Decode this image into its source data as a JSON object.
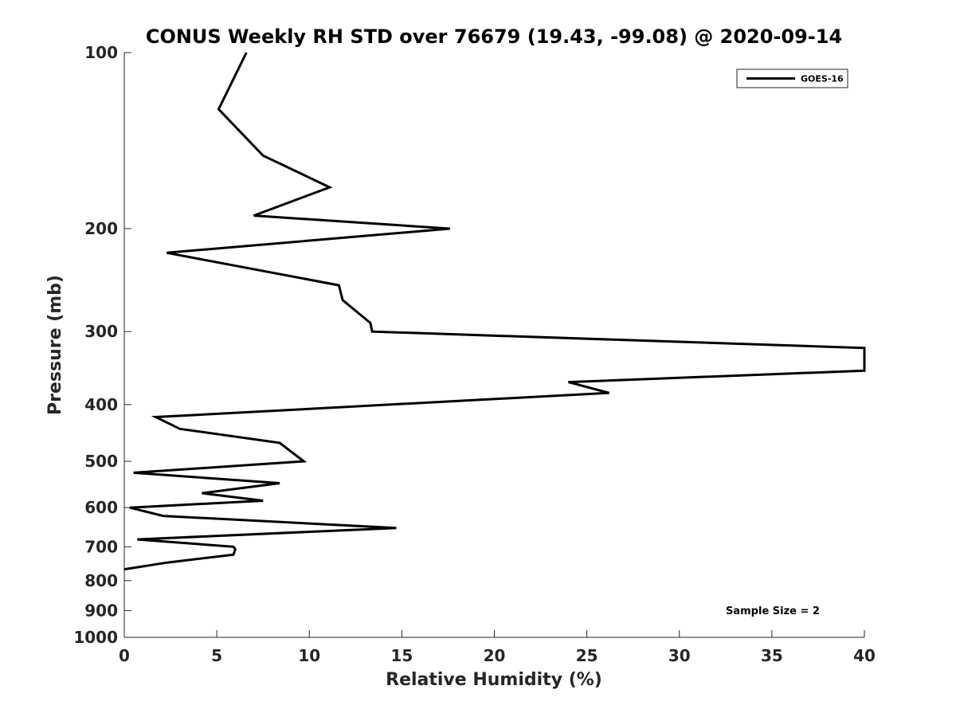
{
  "chart_data": {
    "type": "line",
    "title": "CONUS Weekly RH STD over 76679 (19.43, -99.08) @ 2020-09-14",
    "xlabel": "Relative Humidity (%)",
    "ylabel": "Pressure (mb)",
    "xlim": [
      0,
      40
    ],
    "ylim": [
      100,
      1000
    ],
    "y_scale": "log",
    "y_reversed": true,
    "x_ticks": [
      0,
      5,
      10,
      15,
      20,
      25,
      30,
      35,
      40
    ],
    "y_ticks": [
      100,
      200,
      300,
      400,
      500,
      600,
      700,
      800,
      900,
      1000
    ],
    "legend": {
      "entries": [
        "GOES-16"
      ],
      "location": "top-right"
    },
    "annotation": "Sample Size = 2",
    "grid": false,
    "series": [
      {
        "name": "GOES-16",
        "color": "#000000",
        "x": [
          6.6,
          5.1,
          7.5,
          11.1,
          7.0,
          17.6,
          2.3,
          11.6,
          11.8,
          13.3,
          13.4,
          40.0,
          40.0,
          24.0,
          26.2,
          1.7,
          3.0,
          8.4,
          9.7,
          0.5,
          8.4,
          4.2,
          7.5,
          0.3,
          2.1,
          14.7,
          0.7,
          5.9,
          6.0,
          5.9,
          2.3,
          0.0
        ],
        "y": [
          100,
          125,
          150,
          170,
          190,
          200,
          220,
          250,
          265,
          290,
          300,
          320,
          350,
          366,
          382,
          420,
          440,
          465,
          500,
          523,
          545,
          567,
          584,
          600,
          620,
          650,
          680,
          700,
          707,
          722,
          745,
          765
        ]
      }
    ]
  }
}
